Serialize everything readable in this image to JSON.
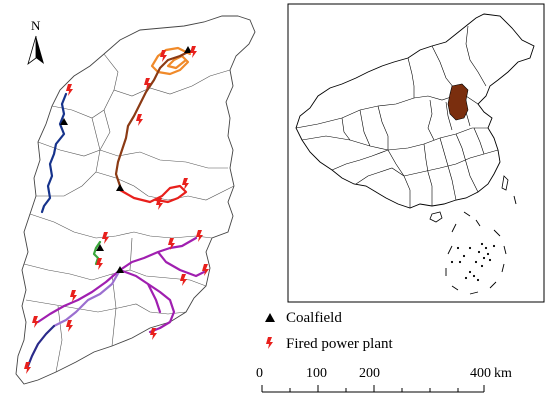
{
  "north": {
    "label": "N"
  },
  "legend": {
    "coalfield_label": "Coalfield",
    "plant_label": "Fired power plant"
  },
  "scale_bar": {
    "ticks": [
      "0",
      "100",
      "200",
      "400"
    ],
    "unit": "km"
  },
  "colors": {
    "route_orange": "#f08a2a",
    "route_brown": "#8b3a14",
    "route_navy": "#16338c",
    "route_red": "#e8201c",
    "route_green": "#3aa63a",
    "route_purple": "#a01fb0",
    "route_violet": "#9b6fd0",
    "route_darkblue": "#2a2a8a",
    "plant_icon": "#e8201c",
    "highlight_province": "#7a2e0e"
  },
  "icons": {
    "coalfield": "black-triangle-icon",
    "plant": "lightning-bolt-icon",
    "north": "north-arrow-icon"
  }
}
